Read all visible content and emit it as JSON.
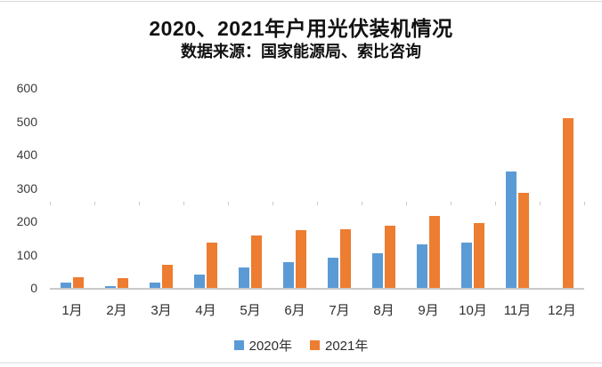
{
  "page": {
    "background": "#ffffff"
  },
  "chart_data": {
    "type": "bar",
    "title": "2020、2021年户用光伏装机情况",
    "subtitle": "数据来源：国家能源局、索比咨询",
    "categories": [
      "1月",
      "2月",
      "3月",
      "4月",
      "5月",
      "6月",
      "7月",
      "8月",
      "9月",
      "10月",
      "11月",
      "12月"
    ],
    "series": [
      {
        "name": "2020年",
        "color": "#5B9BD5",
        "values": [
          15,
          5,
          15,
          40,
          62,
          78,
          91,
          104,
          130,
          137,
          350,
          0
        ]
      },
      {
        "name": "2021年",
        "color": "#ED7D31",
        "values": [
          33,
          30,
          70,
          137,
          156,
          173,
          177,
          186,
          215,
          194,
          285,
          510
        ]
      }
    ],
    "xlabel": "",
    "ylabel": "",
    "ylim": [
      0,
      600
    ],
    "yticks": [
      0,
      100,
      200,
      300,
      400,
      500,
      600
    ],
    "grid": false,
    "legend_position": "bottom",
    "axis_color": "#c9c9c9",
    "text_color": "#3b3b3b"
  }
}
